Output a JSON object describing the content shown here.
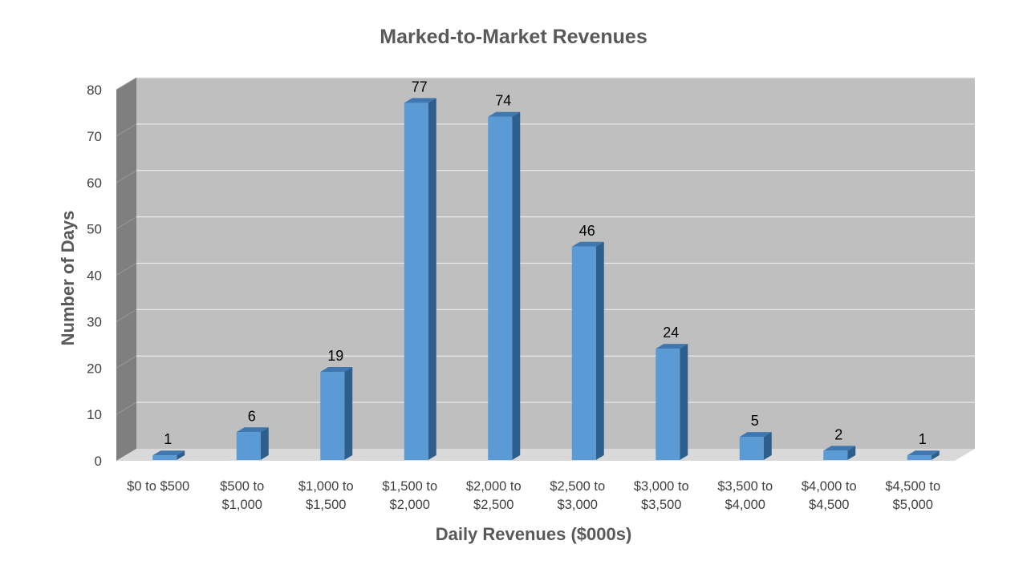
{
  "chart_data": {
    "type": "bar",
    "title": "Marked-to-Market Revenues",
    "xlabel": "Daily Revenues ($000s)",
    "ylabel": "Number of Days",
    "ylim": [
      0,
      80
    ],
    "yticks": [
      0,
      10,
      20,
      30,
      40,
      50,
      60,
      70,
      80
    ],
    "categories": [
      [
        "$0 to $500"
      ],
      [
        "$500 to",
        "$1,000"
      ],
      [
        "$1,000 to",
        "$1,500"
      ],
      [
        "$1,500 to",
        "$2,000"
      ],
      [
        "$2,000 to",
        "$2,500"
      ],
      [
        "$2,500 to",
        "$3,000"
      ],
      [
        "$3,000 to",
        "$3,500"
      ],
      [
        "$3,500 to",
        "$4,000"
      ],
      [
        "$4,000 to",
        "$4,500"
      ],
      [
        "$4,500 to",
        "$5,000"
      ]
    ],
    "values": [
      1,
      6,
      19,
      77,
      74,
      46,
      24,
      5,
      2,
      1
    ],
    "data_labels": true,
    "grid": true,
    "style": "3d-column",
    "colors": {
      "bar_front": "#5b9bd5",
      "bar_side": "#2e5f8c",
      "bar_top": "#3f78b0",
      "wall": "#bfbfbf",
      "side_wall": "#7f7f7f",
      "floor": "#d9d9d9",
      "gridline": "#e8e8e8"
    }
  }
}
